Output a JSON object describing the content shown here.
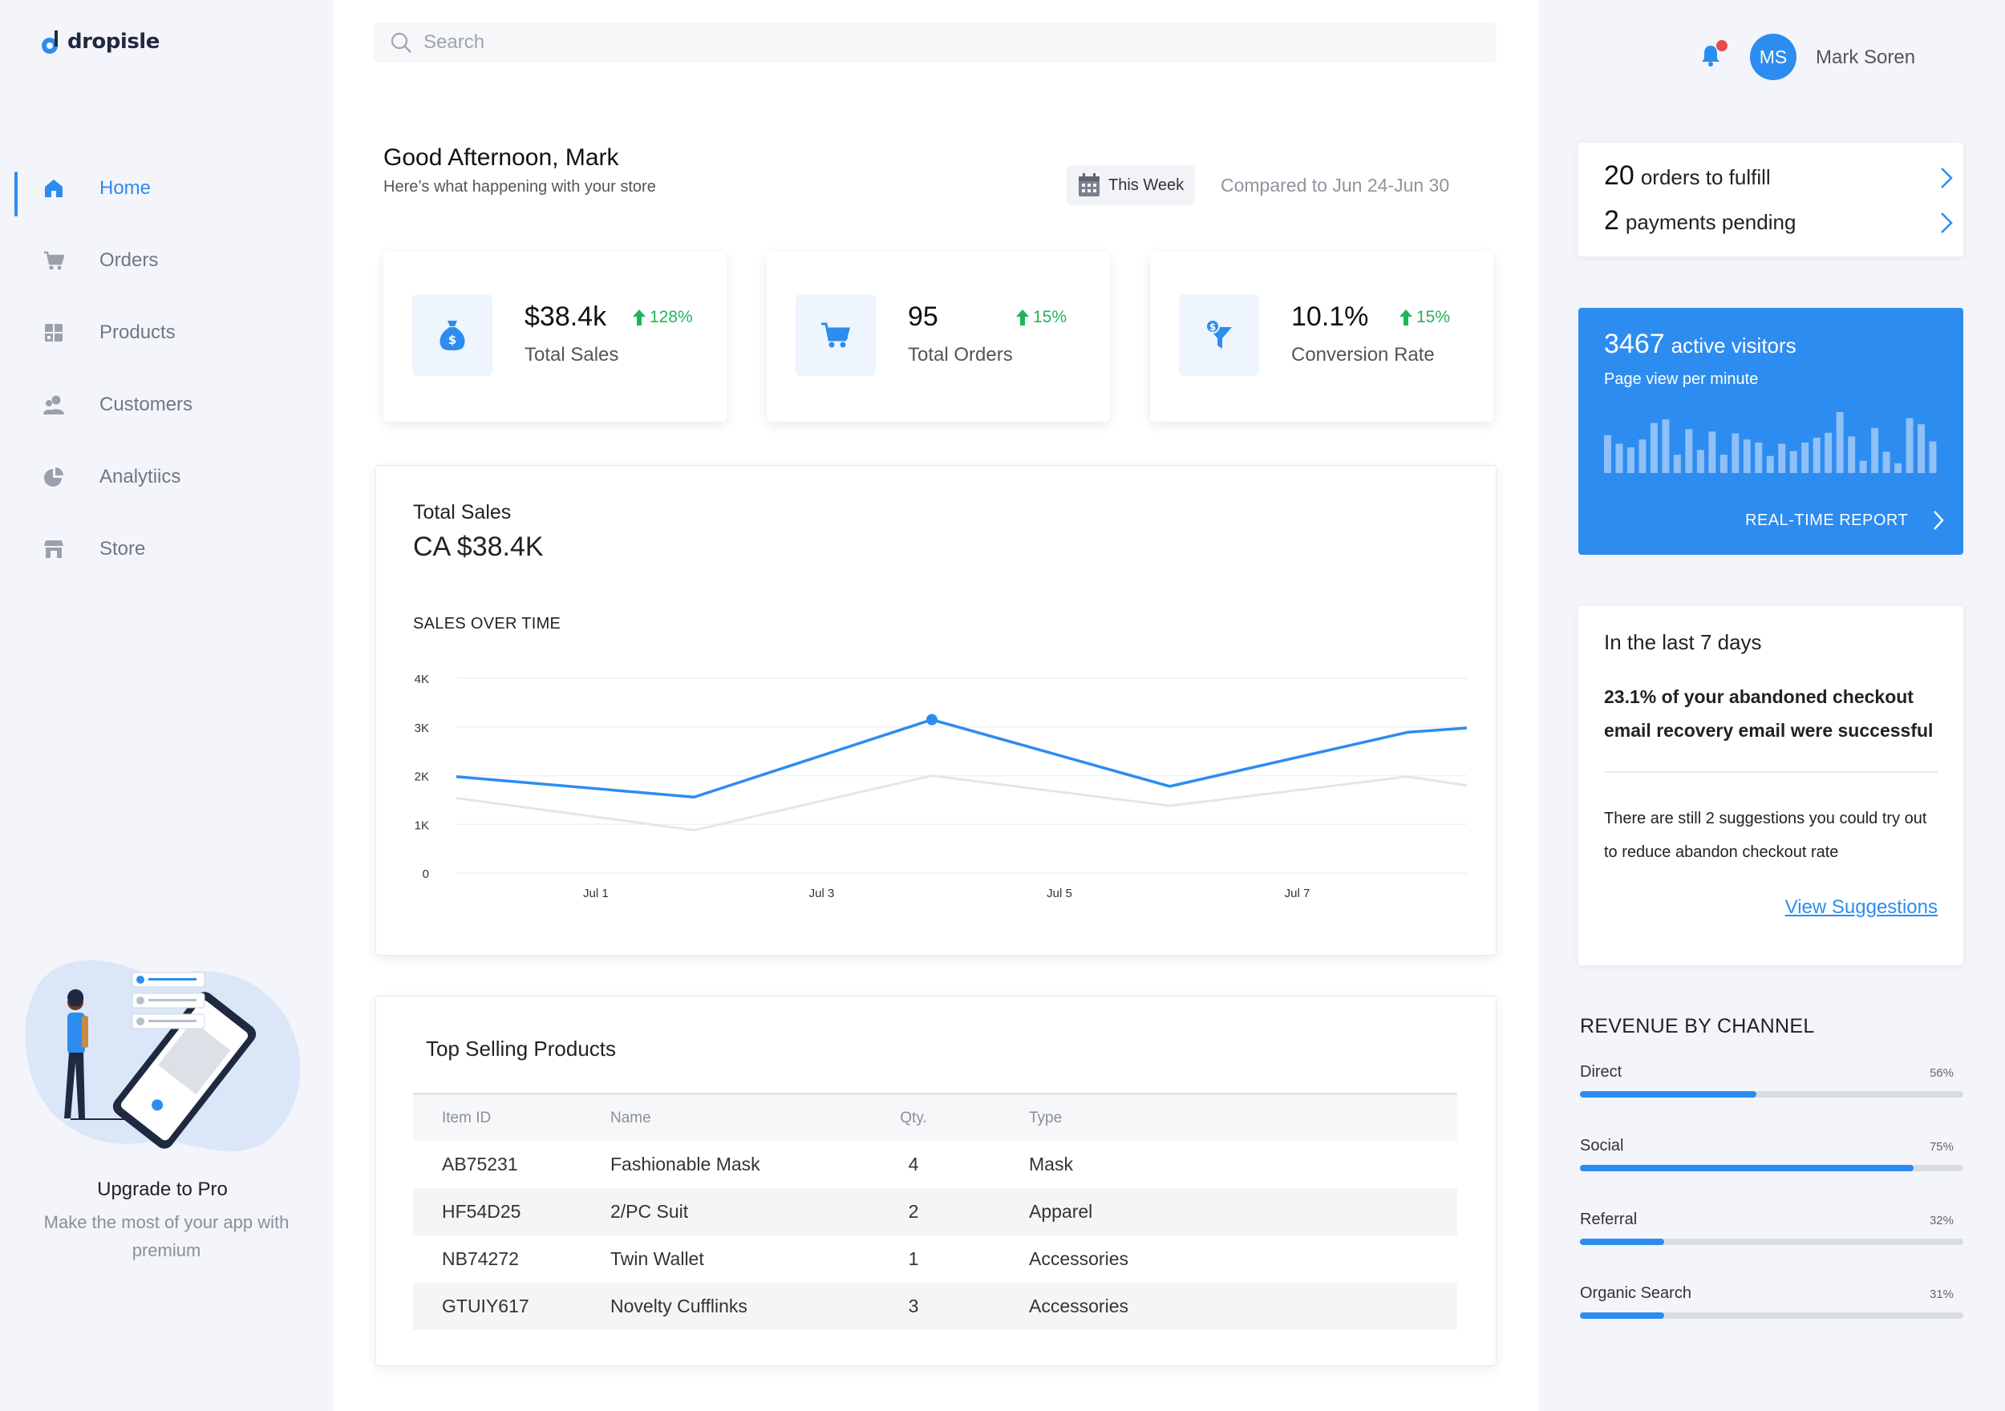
{
  "brand": {
    "name": "dropisle",
    "accent": "#2d8cf0"
  },
  "sidebar": {
    "items": [
      {
        "label": "Home",
        "icon": "home-icon",
        "active": true
      },
      {
        "label": "Orders",
        "icon": "cart-icon"
      },
      {
        "label": "Products",
        "icon": "box-icon"
      },
      {
        "label": "Customers",
        "icon": "users-icon"
      },
      {
        "label": "Analytiics",
        "icon": "pie-chart-icon"
      },
      {
        "label": "Store",
        "icon": "store-icon"
      }
    ],
    "promo": {
      "title": "Upgrade to Pro",
      "subtitle": "Make the most of your app with premium"
    }
  },
  "search": {
    "placeholder": "Search"
  },
  "header": {
    "greeting": "Good Afternoon, Mark",
    "subtitle": "Here’s what happening with your store",
    "period": "This Week",
    "compared": "Compared to Jun 24-Jun 30"
  },
  "kpis": [
    {
      "value": "$38.4k",
      "label": "Total Sales",
      "delta": "128%",
      "icon": "money-bag-icon"
    },
    {
      "value": "95",
      "label": "Total Orders",
      "delta": "15%",
      "icon": "cart-icon"
    },
    {
      "value": "10.1%",
      "label": "Conversion Rate",
      "delta": "15%",
      "icon": "funnel-icon"
    }
  ],
  "sales": {
    "title": "Total Sales",
    "total": "CA $38.4K",
    "subtitle": "SALES OVER TIME"
  },
  "chart_data": {
    "type": "line",
    "title": "SALES OVER TIME",
    "x": [
      0,
      1,
      2,
      3,
      4,
      5,
      6,
      7,
      8
    ],
    "x_tick_positions": [
      1.2,
      3.1,
      5.1,
      7.1
    ],
    "x_tick_labels": [
      "Jul 1",
      "Jul 3",
      "Jul 5",
      "Jul 7"
    ],
    "y_ticks": [
      0,
      1000,
      2000,
      3000,
      4000
    ],
    "y_tick_labels": [
      "0",
      "1K",
      "2K",
      "3K",
      "4K"
    ],
    "ylim": [
      0,
      4000
    ],
    "series": [
      {
        "name": "current",
        "x": [
          0,
          2,
          4,
          6,
          8,
          8.5
        ],
        "values": [
          1980,
          1560,
          3150,
          1780,
          2890,
          2980
        ],
        "color": "#2d8cf0",
        "highlight_index": 2
      },
      {
        "name": "previous",
        "x": [
          0,
          2,
          4,
          6,
          8,
          8.5
        ],
        "values": [
          1540,
          880,
          2000,
          1380,
          1980,
          1800
        ],
        "color": "#e4e6ea"
      }
    ]
  },
  "top_products": {
    "title": "Top Selling Products",
    "columns": [
      "Item ID",
      "Name",
      "Qty.",
      "Type"
    ],
    "rows": [
      [
        "AB75231",
        "Fashionable Mask",
        "4",
        "Mask"
      ],
      [
        "HF54D25",
        "2/PC Suit",
        "2",
        "Apparel"
      ],
      [
        "NB74272",
        "Twin Wallet",
        "1",
        "Accessories"
      ],
      [
        "GTUIY617",
        "Novelty Cufflinks",
        "3",
        "Accessories"
      ]
    ]
  },
  "user": {
    "initials": "MS",
    "name": "Mark Soren"
  },
  "tasks": [
    {
      "count": "20",
      "text": "orders to fulfill"
    },
    {
      "count": "2",
      "text": "payments pending"
    }
  ],
  "visitors": {
    "count": "3467",
    "label": "active visitors",
    "subtitle": "Page view per minute",
    "report": "REAL-TIME REPORT",
    "bars": [
      0.62,
      0.48,
      0.42,
      0.55,
      0.82,
      0.88,
      0.3,
      0.72,
      0.38,
      0.68,
      0.3,
      0.65,
      0.55,
      0.5,
      0.28,
      0.48,
      0.36,
      0.5,
      0.58,
      0.66,
      1.0,
      0.6,
      0.2,
      0.74,
      0.35,
      0.16,
      0.9,
      0.8,
      0.52
    ]
  },
  "insight": {
    "title": "In the last 7 days",
    "bold": "23.1% of your abandoned checkout email recovery email were successful",
    "text": "There are still 2 suggestions you could try out to reduce abandon checkout rate",
    "link": "View Suggestions"
  },
  "revenue": {
    "title": "REVENUE BY CHANNEL",
    "channels": [
      {
        "name": "Direct",
        "pct": "56%",
        "fill": 0.46
      },
      {
        "name": "Social",
        "pct": "75%",
        "fill": 0.87
      },
      {
        "name": "Referral",
        "pct": "32%",
        "fill": 0.22
      },
      {
        "name": "Organic Search",
        "pct": "31%",
        "fill": 0.22
      }
    ]
  }
}
